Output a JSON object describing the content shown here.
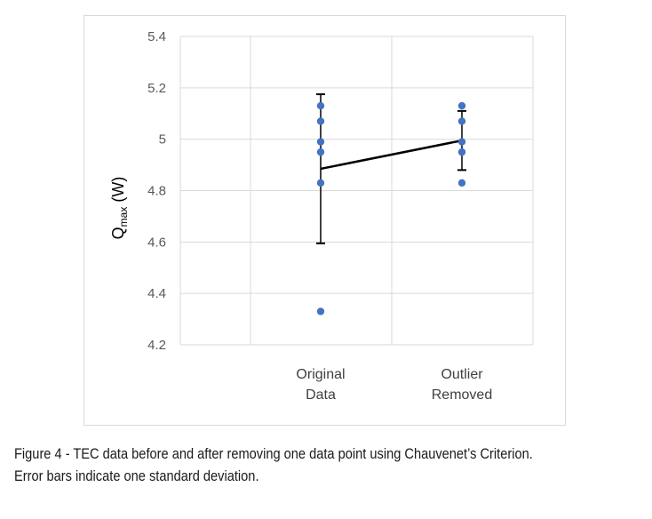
{
  "chart_data": {
    "type": "scatter",
    "categories": [
      "Original Data",
      "Outlier Removed"
    ],
    "category_lines": [
      [
        "Original",
        "Data"
      ],
      [
        "Outlier",
        "Removed"
      ]
    ],
    "ylabel_main": "Q",
    "ylabel_sub": "max",
    "ylabel_unit": " (W)",
    "ylim": [
      4.2,
      5.4
    ],
    "yticks": [
      4.2,
      4.4,
      4.6,
      4.8,
      5,
      5.2,
      5.4
    ],
    "ytick_labels": [
      "4.2",
      "4.4",
      "4.6",
      "4.8",
      "5",
      "5.2",
      "5.4"
    ],
    "grid": true,
    "points": [
      {
        "category": "Original Data",
        "values": [
          5.13,
          5.07,
          4.99,
          4.95,
          4.83,
          4.33
        ]
      },
      {
        "category": "Outlier Removed",
        "values": [
          5.13,
          5.07,
          4.99,
          4.95,
          4.83
        ]
      }
    ],
    "mean_line": [
      4.885,
      4.995
    ],
    "error_bars": [
      {
        "category": "Original Data",
        "mean": 4.885,
        "sd": 0.29
      },
      {
        "category": "Outlier Removed",
        "mean": 4.995,
        "sd": 0.115
      }
    ],
    "colors": {
      "points": "#4472c4",
      "line": "#000000",
      "grid": "#d9d9d9"
    }
  },
  "caption": {
    "line1": "Figure 4 - TEC data before and after removing one data point using Chauvenet’s Criterion.",
    "line2": "Error bars indicate one standard deviation."
  }
}
